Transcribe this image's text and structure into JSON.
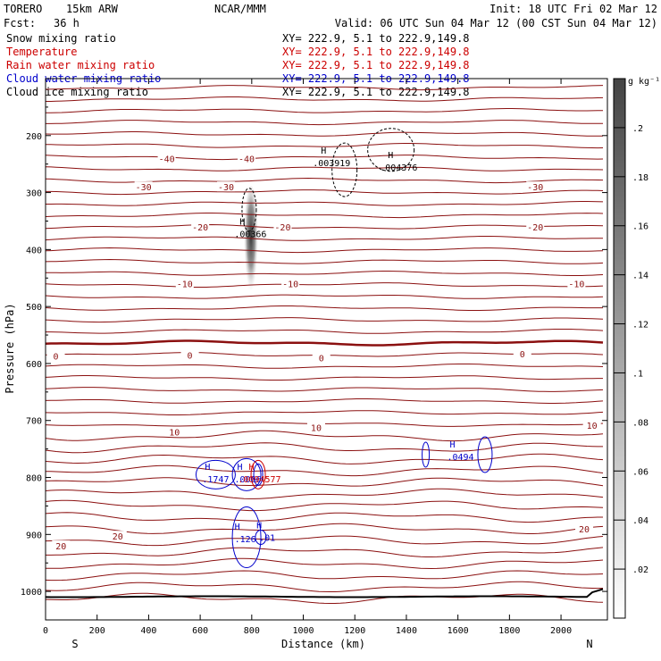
{
  "header": {
    "model": "TORERO",
    "resolution": "15km ARW",
    "org": "NCAR/MMM",
    "init": "Init: 18 UTC Fri 02 Mar 12",
    "fcst_label": "Fcst:",
    "fcst_value": "36 h",
    "valid": "Valid: 06 UTC Sun 04 Mar 12 (00 CST Sun 04 Mar 12)"
  },
  "fields": [
    {
      "name": "Snow mixing ratio",
      "xy": "XY= 222.9,  5.1 to 222.9,149.8",
      "color": "#000000"
    },
    {
      "name": "Temperature",
      "xy": "XY= 222.9,  5.1 to 222.9,149.8",
      "color": "#cc0000"
    },
    {
      "name": "Rain water mixing ratio",
      "xy": "XY= 222.9,  5.1 to 222.9,149.8",
      "color": "#cc0000"
    },
    {
      "name": "Cloud water mixing ratio",
      "xy": "XY= 222.9,  5.1 to 222.9,149.8",
      "color": "#0000cc"
    },
    {
      "name": "Cloud ice mixing ratio",
      "xy": "XY= 222.9,  5.1 to 222.9,149.8",
      "color": "#000000"
    }
  ],
  "chart_data": {
    "type": "heatmap",
    "xlabel": "Distance (km)",
    "ylabel": "Pressure (hPa)",
    "xlim": [
      0,
      2180
    ],
    "ylim": [
      1050,
      100
    ],
    "xticks": [
      "0",
      "200",
      "400",
      "600",
      "800",
      "1000",
      "1200",
      "1400",
      "1600",
      "1800",
      "2000"
    ],
    "yticks": [
      "200",
      "300",
      "400",
      "500",
      "600",
      "700",
      "800",
      "900",
      "1000"
    ],
    "x_end_labels": {
      "left": "S",
      "right": "N"
    },
    "colorbar": {
      "unit": "g kg⁻¹",
      "ticks": [
        ".02",
        ".04",
        ".06",
        ".08",
        ".1",
        ".12",
        ".14",
        ".16",
        ".18",
        ".2"
      ],
      "range": [
        0,
        0.22
      ]
    },
    "temperature_labels": [
      {
        "text": "-40",
        "x": 470,
        "p": 240
      },
      {
        "text": "-40",
        "x": 780,
        "p": 240
      },
      {
        "text": "-30",
        "x": 380,
        "p": 290
      },
      {
        "text": "-30",
        "x": 700,
        "p": 290
      },
      {
        "text": "-30",
        "x": 1900,
        "p": 290
      },
      {
        "text": "-20",
        "x": 600,
        "p": 360
      },
      {
        "text": "-20",
        "x": 920,
        "p": 360
      },
      {
        "text": "-20",
        "x": 1900,
        "p": 360
      },
      {
        "text": "-10",
        "x": 540,
        "p": 460
      },
      {
        "text": "-10",
        "x": 950,
        "p": 460
      },
      {
        "text": "-10",
        "x": 2060,
        "p": 460
      },
      {
        "text": "0",
        "x": 40,
        "p": 587
      },
      {
        "text": "0",
        "x": 560,
        "p": 585
      },
      {
        "text": "0",
        "x": 1070,
        "p": 590
      },
      {
        "text": "0",
        "x": 1850,
        "p": 583
      },
      {
        "text": "10",
        "x": 500,
        "p": 720
      },
      {
        "text": "10",
        "x": 1050,
        "p": 712
      },
      {
        "text": "10",
        "x": 2120,
        "p": 708
      },
      {
        "text": "20",
        "x": 60,
        "p": 920
      },
      {
        "text": "20",
        "x": 280,
        "p": 903
      },
      {
        "text": "20",
        "x": 2090,
        "p": 890
      }
    ],
    "maxima": [
      {
        "text": ".003919",
        "x": 1110,
        "p": 247,
        "color": "#000000"
      },
      {
        "text": ".004376",
        "x": 1370,
        "p": 255,
        "color": "#000000"
      },
      {
        "text": ".00366",
        "x": 795,
        "p": 372,
        "color": "#000000"
      },
      {
        "text": ".1747",
        "x": 660,
        "p": 802,
        "color": "#0000cc"
      },
      {
        "text": ".0066",
        "x": 785,
        "p": 802,
        "color": "#0000cc"
      },
      {
        "text": ".0094577",
        "x": 830,
        "p": 802,
        "color": "#cc0000"
      },
      {
        "text": ".0494",
        "x": 1610,
        "p": 763,
        "color": "#0000cc"
      },
      {
        "text": ".126",
        "x": 775,
        "p": 907,
        "color": "#0000cc"
      },
      {
        "text": ".01",
        "x": 860,
        "p": 905,
        "color": "#0000cc"
      }
    ],
    "snow_max": 0.2
  }
}
